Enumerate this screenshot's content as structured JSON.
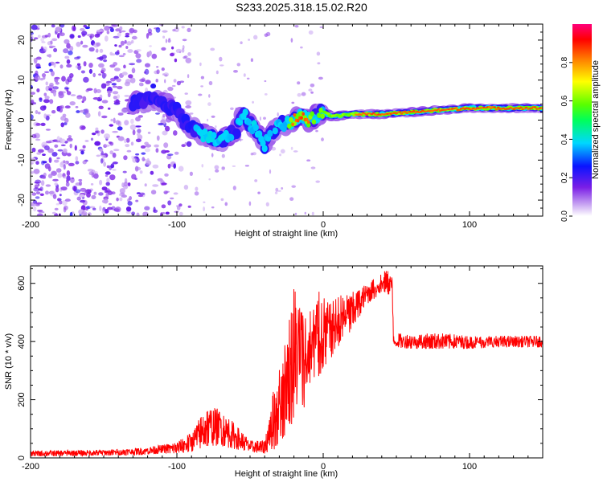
{
  "figure_title": "S233.2025.318.15.02.R20",
  "chart_data": [
    {
      "type": "heatmap",
      "name": "spectrogram",
      "xlabel": "Height of straight line (km)",
      "ylabel": "Frequency (Hz)",
      "xlim": [
        -200,
        150
      ],
      "ylim": [
        -24,
        24
      ],
      "xticks": [
        -200,
        -100,
        0,
        100
      ],
      "xtick_labels": [
        "-200",
        "-100",
        "0",
        "100"
      ],
      "yticks": [
        -20,
        -10,
        0,
        10,
        20
      ],
      "ytick_labels": [
        "-20",
        "-10",
        "0",
        "10",
        "20"
      ],
      "colorbar": {
        "label": "Normalized spectral amplitude",
        "range": [
          0,
          1
        ],
        "ticks": [
          0.0,
          0.2,
          0.4,
          0.6,
          0.8
        ],
        "tick_labels": [
          "0.0",
          "0.2",
          "0.4",
          "0.6",
          "0.8"
        ],
        "colormap": "rainbow (white to violet to blue to cyan to green to yellow to red to magenta)"
      },
      "signal_track": {
        "description": "Dominant frequency of the signal versus height",
        "x": [
          -130,
          -120,
          -110,
          -100,
          -90,
          -80,
          -70,
          -60,
          -55,
          -50,
          -45,
          -40,
          -35,
          -30,
          -25,
          -20,
          -15,
          -10,
          -5,
          0,
          5,
          10,
          20,
          40,
          60,
          80,
          100,
          120,
          150
        ],
        "frequency": [
          4,
          5,
          5,
          2,
          -2,
          -4,
          -5,
          -3,
          2,
          -1,
          -3,
          -6,
          -3,
          -1,
          -1,
          0,
          1,
          0,
          1,
          2,
          1,
          1,
          1.5,
          1.5,
          2,
          2.5,
          3,
          3,
          3
        ],
        "peak_amplitude": [
          0.3,
          0.35,
          0.35,
          0.3,
          0.35,
          0.4,
          0.4,
          0.35,
          0.4,
          0.45,
          0.4,
          0.4,
          0.35,
          0.4,
          0.45,
          0.9,
          0.9,
          0.85,
          0.5,
          0.7,
          0.6,
          0.7,
          0.8,
          0.9,
          0.9,
          0.9,
          0.95,
          0.95,
          0.9
        ]
      },
      "noise_region_x": [
        -200,
        -110
      ]
    },
    {
      "type": "line",
      "name": "snr",
      "xlabel": "Height of straight line (km)",
      "ylabel": "SNR (10 * v/v)",
      "xlim": [
        -200,
        150
      ],
      "ylim": [
        0,
        660
      ],
      "xticks": [
        -200,
        -100,
        0,
        100
      ],
      "xtick_labels": [
        "-200",
        "-100",
        "0",
        "100"
      ],
      "yticks": [
        0,
        200,
        400,
        600
      ],
      "ytick_labels": [
        "0",
        "200",
        "400",
        "600"
      ],
      "color": "#ff0000",
      "series_envelope": {
        "x": [
          -200,
          -150,
          -125,
          -110,
          -100,
          -90,
          -80,
          -70,
          -60,
          -50,
          -40,
          -35,
          -30,
          -25,
          -20,
          -15,
          -10,
          -5,
          0,
          5,
          10,
          20,
          30,
          40,
          47,
          48,
          60,
          80,
          100,
          120,
          150
        ],
        "low": [
          5,
          8,
          10,
          15,
          15,
          20,
          40,
          40,
          30,
          20,
          15,
          20,
          50,
          80,
          120,
          150,
          180,
          260,
          300,
          340,
          380,
          440,
          530,
          560,
          560,
          380,
          375,
          375,
          375,
          380,
          380
        ],
        "high": [
          25,
          28,
          35,
          45,
          55,
          90,
          175,
          170,
          115,
          60,
          60,
          210,
          320,
          430,
          600,
          550,
          520,
          580,
          560,
          530,
          560,
          570,
          600,
          640,
          650,
          430,
          425,
          430,
          420,
          420,
          420
        ]
      }
    }
  ]
}
